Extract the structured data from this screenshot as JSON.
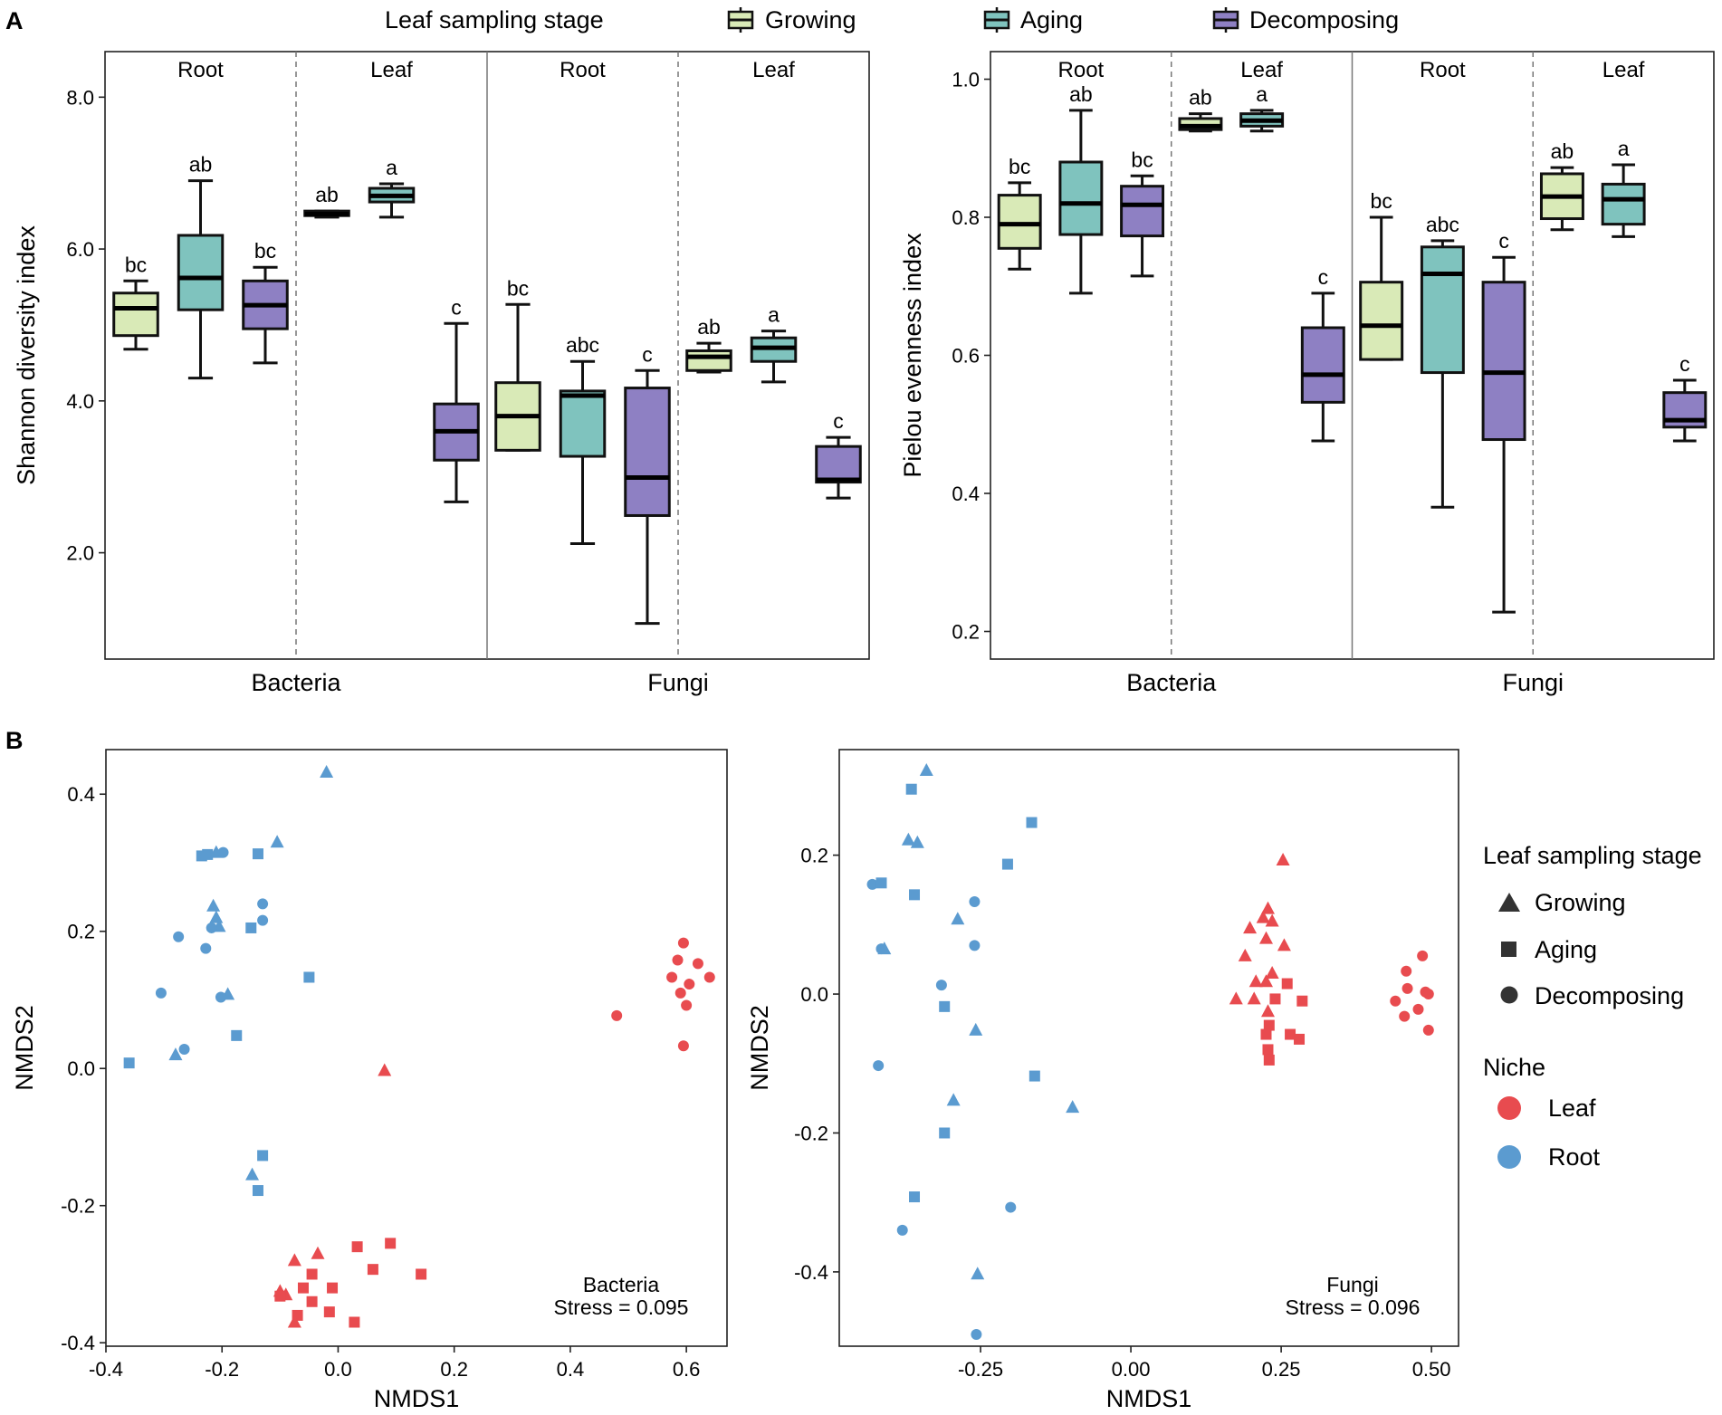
{
  "panels": {
    "a": "A",
    "b": "B"
  },
  "legend_top": {
    "title": "Leaf sampling stage",
    "items": [
      {
        "label": "Growing",
        "color": "#d9eab7"
      },
      {
        "label": "Aging",
        "color": "#7fc3be"
      },
      {
        "label": "Decomposing",
        "color": "#8e80c3"
      }
    ]
  },
  "legend_right": {
    "stage_title": "Leaf sampling stage",
    "stages": [
      {
        "label": "Growing",
        "shape": "triangle"
      },
      {
        "label": "Aging",
        "shape": "square"
      },
      {
        "label": "Decomposing",
        "shape": "circle"
      }
    ],
    "niche_title": "Niche",
    "niches": [
      {
        "label": "Leaf",
        "color": "#e84b4f"
      },
      {
        "label": "Root",
        "color": "#5b9bd0"
      }
    ]
  },
  "chart_data": [
    {
      "type": "boxplot",
      "ylabel": "Shannon diversity index",
      "ylim": [
        0.6,
        8.6
      ],
      "yticks": [
        "2.0",
        "4.0",
        "6.0",
        "8.0"
      ],
      "groups": [
        "Bacteria",
        "Fungi"
      ],
      "facets": [
        "Root",
        "Leaf",
        "Root",
        "Leaf"
      ],
      "boxes": [
        {
          "facet": 0,
          "stage": 0,
          "min": 4.68,
          "q1": 4.86,
          "median": 5.22,
          "q3": 5.42,
          "max": 5.58,
          "letter": "bc"
        },
        {
          "facet": 0,
          "stage": 1,
          "min": 4.3,
          "q1": 5.2,
          "median": 5.62,
          "q3": 6.18,
          "max": 6.9,
          "letter": "ab"
        },
        {
          "facet": 0,
          "stage": 2,
          "min": 4.5,
          "q1": 4.95,
          "median": 5.26,
          "q3": 5.58,
          "max": 5.76,
          "letter": "bc"
        },
        {
          "facet": 1,
          "stage": 0,
          "min": 6.42,
          "q1": 6.44,
          "median": 6.46,
          "q3": 6.5,
          "max": 6.5,
          "letter": "ab"
        },
        {
          "facet": 1,
          "stage": 1,
          "min": 6.42,
          "q1": 6.62,
          "median": 6.7,
          "q3": 6.8,
          "max": 6.86,
          "letter": "a"
        },
        {
          "facet": 1,
          "stage": 2,
          "min": 2.67,
          "q1": 3.22,
          "median": 3.6,
          "q3": 3.96,
          "max": 5.02,
          "letter": "c"
        },
        {
          "facet": 2,
          "stage": 0,
          "min": 3.35,
          "q1": 3.35,
          "median": 3.8,
          "q3": 4.24,
          "max": 5.27,
          "letter": "bc"
        },
        {
          "facet": 2,
          "stage": 1,
          "min": 2.12,
          "q1": 3.27,
          "median": 4.07,
          "q3": 4.13,
          "max": 4.52,
          "letter": "abc"
        },
        {
          "facet": 2,
          "stage": 2,
          "min": 1.07,
          "q1": 2.49,
          "median": 2.99,
          "q3": 4.17,
          "max": 4.4,
          "letter": "c"
        },
        {
          "facet": 3,
          "stage": 0,
          "min": 4.38,
          "q1": 4.4,
          "median": 4.58,
          "q3": 4.66,
          "max": 4.76,
          "letter": "ab"
        },
        {
          "facet": 3,
          "stage": 1,
          "min": 4.25,
          "q1": 4.52,
          "median": 4.7,
          "q3": 4.83,
          "max": 4.92,
          "letter": "a"
        },
        {
          "facet": 3,
          "stage": 2,
          "min": 2.72,
          "q1": 2.93,
          "median": 2.96,
          "q3": 3.4,
          "max": 3.52,
          "letter": "c"
        }
      ]
    },
    {
      "type": "boxplot",
      "ylabel": "Pielou evenness index",
      "ylim": [
        0.16,
        1.04
      ],
      "yticks": [
        "0.2",
        "0.4",
        "0.6",
        "0.8",
        "1.0"
      ],
      "groups": [
        "Bacteria",
        "Fungi"
      ],
      "facets": [
        "Root",
        "Leaf",
        "Root",
        "Leaf"
      ],
      "boxes": [
        {
          "facet": 0,
          "stage": 0,
          "min": 0.725,
          "q1": 0.755,
          "median": 0.79,
          "q3": 0.832,
          "max": 0.85,
          "letter": "bc"
        },
        {
          "facet": 0,
          "stage": 1,
          "min": 0.69,
          "q1": 0.775,
          "median": 0.82,
          "q3": 0.88,
          "max": 0.955,
          "letter": "ab"
        },
        {
          "facet": 0,
          "stage": 2,
          "min": 0.715,
          "q1": 0.773,
          "median": 0.818,
          "q3": 0.845,
          "max": 0.86,
          "letter": "bc"
        },
        {
          "facet": 1,
          "stage": 0,
          "min": 0.925,
          "q1": 0.927,
          "median": 0.932,
          "q3": 0.943,
          "max": 0.95,
          "letter": "ab"
        },
        {
          "facet": 1,
          "stage": 1,
          "min": 0.925,
          "q1": 0.932,
          "median": 0.94,
          "q3": 0.95,
          "max": 0.955,
          "letter": "a"
        },
        {
          "facet": 1,
          "stage": 2,
          "min": 0.476,
          "q1": 0.532,
          "median": 0.572,
          "q3": 0.64,
          "max": 0.69,
          "letter": "c"
        },
        {
          "facet": 2,
          "stage": 0,
          "min": 0.594,
          "q1": 0.594,
          "median": 0.643,
          "q3": 0.706,
          "max": 0.8,
          "letter": "bc"
        },
        {
          "facet": 2,
          "stage": 1,
          "min": 0.38,
          "q1": 0.575,
          "median": 0.718,
          "q3": 0.757,
          "max": 0.766,
          "letter": "abc"
        },
        {
          "facet": 2,
          "stage": 2,
          "min": 0.228,
          "q1": 0.478,
          "median": 0.575,
          "q3": 0.706,
          "max": 0.742,
          "letter": "c"
        },
        {
          "facet": 3,
          "stage": 0,
          "min": 0.782,
          "q1": 0.798,
          "median": 0.83,
          "q3": 0.863,
          "max": 0.872,
          "letter": "ab"
        },
        {
          "facet": 3,
          "stage": 1,
          "min": 0.772,
          "q1": 0.79,
          "median": 0.826,
          "q3": 0.848,
          "max": 0.876,
          "letter": "a"
        },
        {
          "facet": 3,
          "stage": 2,
          "min": 0.476,
          "q1": 0.496,
          "median": 0.506,
          "q3": 0.546,
          "max": 0.564,
          "letter": "c"
        }
      ]
    },
    {
      "type": "scatter",
      "xlabel": "NMDS1",
      "ylabel": "NMDS2",
      "annotation": [
        "Bacteria",
        "Stress = 0.095"
      ],
      "xlim": [
        -0.4,
        0.67
      ],
      "ylim": [
        -0.405,
        0.465
      ],
      "xticks": [
        {
          "v": -0.4,
          "l": "-0.4"
        },
        {
          "v": -0.2,
          "l": "-0.2"
        },
        {
          "v": 0.0,
          "l": "0.0"
        },
        {
          "v": 0.2,
          "l": "0.2"
        },
        {
          "v": 0.4,
          "l": "0.4"
        },
        {
          "v": 0.6,
          "l": "0.6"
        }
      ],
      "yticks": [
        {
          "v": -0.4,
          "l": "-0.4"
        },
        {
          "v": -0.2,
          "l": "-0.2"
        },
        {
          "v": 0.0,
          "l": "0.0"
        },
        {
          "v": 0.2,
          "l": "0.2"
        },
        {
          "v": 0.4,
          "l": "0.4"
        }
      ],
      "points": [
        [
          -0.02,
          0.432,
          "t",
          "root"
        ],
        [
          -0.105,
          0.33,
          "t",
          "root"
        ],
        [
          -0.225,
          0.312,
          "s",
          "root"
        ],
        [
          -0.21,
          0.315,
          "t",
          "root"
        ],
        [
          -0.198,
          0.315,
          "c",
          "root"
        ],
        [
          -0.138,
          0.313,
          "s",
          "root"
        ],
        [
          -0.235,
          0.31,
          "s",
          "root"
        ],
        [
          -0.215,
          0.237,
          "t",
          "root"
        ],
        [
          -0.13,
          0.24,
          "c",
          "root"
        ],
        [
          -0.21,
          0.22,
          "t",
          "root"
        ],
        [
          -0.13,
          0.216,
          "c",
          "root"
        ],
        [
          -0.15,
          0.205,
          "s",
          "root"
        ],
        [
          -0.205,
          0.207,
          "t",
          "root"
        ],
        [
          -0.218,
          0.205,
          "c",
          "root"
        ],
        [
          -0.275,
          0.192,
          "c",
          "root"
        ],
        [
          -0.228,
          0.175,
          "c",
          "root"
        ],
        [
          -0.05,
          0.133,
          "s",
          "root"
        ],
        [
          -0.305,
          0.11,
          "c",
          "root"
        ],
        [
          -0.19,
          0.108,
          "t",
          "root"
        ],
        [
          -0.202,
          0.104,
          "c",
          "root"
        ],
        [
          -0.175,
          0.048,
          "s",
          "root"
        ],
        [
          -0.265,
          0.028,
          "c",
          "root"
        ],
        [
          -0.28,
          0.02,
          "t",
          "root"
        ],
        [
          -0.36,
          0.008,
          "s",
          "root"
        ],
        [
          -0.13,
          -0.127,
          "s",
          "root"
        ],
        [
          -0.148,
          -0.155,
          "t",
          "root"
        ],
        [
          -0.138,
          -0.178,
          "s",
          "root"
        ],
        [
          0.595,
          0.183,
          "c",
          "leaf"
        ],
        [
          0.585,
          0.158,
          "c",
          "leaf"
        ],
        [
          0.62,
          0.153,
          "c",
          "leaf"
        ],
        [
          0.64,
          0.133,
          "c",
          "leaf"
        ],
        [
          0.575,
          0.133,
          "c",
          "leaf"
        ],
        [
          0.605,
          0.123,
          "c",
          "leaf"
        ],
        [
          0.59,
          0.11,
          "c",
          "leaf"
        ],
        [
          0.6,
          0.092,
          "c",
          "leaf"
        ],
        [
          0.48,
          0.077,
          "c",
          "leaf"
        ],
        [
          0.595,
          0.033,
          "c",
          "leaf"
        ],
        [
          0.08,
          -0.003,
          "t",
          "leaf"
        ],
        [
          0.09,
          -0.255,
          "s",
          "leaf"
        ],
        [
          0.033,
          -0.26,
          "s",
          "leaf"
        ],
        [
          -0.035,
          -0.27,
          "t",
          "leaf"
        ],
        [
          -0.075,
          -0.28,
          "t",
          "leaf"
        ],
        [
          -0.045,
          -0.3,
          "s",
          "leaf"
        ],
        [
          0.06,
          -0.293,
          "s",
          "leaf"
        ],
        [
          0.143,
          -0.3,
          "s",
          "leaf"
        ],
        [
          -0.06,
          -0.32,
          "s",
          "leaf"
        ],
        [
          -0.01,
          -0.32,
          "s",
          "leaf"
        ],
        [
          -0.1,
          -0.325,
          "t",
          "leaf"
        ],
        [
          -0.09,
          -0.33,
          "t",
          "leaf"
        ],
        [
          -0.1,
          -0.332,
          "s",
          "leaf"
        ],
        [
          -0.045,
          -0.34,
          "s",
          "leaf"
        ],
        [
          -0.015,
          -0.355,
          "s",
          "leaf"
        ],
        [
          -0.07,
          -0.36,
          "s",
          "leaf"
        ],
        [
          0.028,
          -0.37,
          "s",
          "leaf"
        ],
        [
          -0.075,
          -0.37,
          "t",
          "leaf"
        ]
      ]
    },
    {
      "type": "scatter",
      "xlabel": "NMDS1",
      "ylabel": "NMDS2",
      "annotation": [
        "Fungi",
        "Stress = 0.096"
      ],
      "xlim": [
        -0.485,
        0.545
      ],
      "ylim": [
        -0.507,
        0.352
      ],
      "xticks": [
        {
          "v": -0.25,
          "l": "-0.25"
        },
        {
          "v": 0.0,
          "l": "0.00"
        },
        {
          "v": 0.25,
          "l": "0.25"
        },
        {
          "v": 0.5,
          "l": "0.50"
        }
      ],
      "yticks": [
        {
          "v": -0.4,
          "l": "-0.4"
        },
        {
          "v": -0.2,
          "l": "-0.2"
        },
        {
          "v": 0.0,
          "l": "0.0"
        },
        {
          "v": 0.2,
          "l": "0.2"
        }
      ],
      "points": [
        [
          -0.34,
          0.322,
          "t",
          "root"
        ],
        [
          -0.365,
          0.295,
          "s",
          "root"
        ],
        [
          -0.37,
          0.222,
          "t",
          "root"
        ],
        [
          -0.355,
          0.218,
          "t",
          "root"
        ],
        [
          -0.165,
          0.247,
          "s",
          "root"
        ],
        [
          -0.205,
          0.187,
          "s",
          "root"
        ],
        [
          -0.43,
          0.158,
          "c",
          "root"
        ],
        [
          -0.415,
          0.16,
          "s",
          "root"
        ],
        [
          -0.36,
          0.143,
          "s",
          "root"
        ],
        [
          -0.26,
          0.133,
          "c",
          "root"
        ],
        [
          -0.288,
          0.108,
          "t",
          "root"
        ],
        [
          -0.26,
          0.07,
          "c",
          "root"
        ],
        [
          -0.415,
          0.065,
          "c",
          "root"
        ],
        [
          -0.41,
          0.065,
          "t",
          "root"
        ],
        [
          -0.315,
          0.013,
          "c",
          "root"
        ],
        [
          -0.31,
          -0.018,
          "s",
          "root"
        ],
        [
          -0.258,
          -0.052,
          "t",
          "root"
        ],
        [
          -0.42,
          -0.103,
          "c",
          "root"
        ],
        [
          -0.16,
          -0.118,
          "s",
          "root"
        ],
        [
          -0.295,
          -0.153,
          "t",
          "root"
        ],
        [
          -0.097,
          -0.163,
          "t",
          "root"
        ],
        [
          -0.31,
          -0.2,
          "s",
          "root"
        ],
        [
          -0.36,
          -0.292,
          "s",
          "root"
        ],
        [
          -0.2,
          -0.307,
          "c",
          "root"
        ],
        [
          -0.38,
          -0.34,
          "c",
          "root"
        ],
        [
          -0.255,
          -0.403,
          "t",
          "root"
        ],
        [
          -0.257,
          -0.49,
          "c",
          "root"
        ],
        [
          0.253,
          0.193,
          "t",
          "leaf"
        ],
        [
          0.228,
          0.123,
          "t",
          "leaf"
        ],
        [
          0.22,
          0.11,
          "t",
          "leaf"
        ],
        [
          0.235,
          0.105,
          "t",
          "leaf"
        ],
        [
          0.198,
          0.095,
          "t",
          "leaf"
        ],
        [
          0.225,
          0.08,
          "t",
          "leaf"
        ],
        [
          0.255,
          0.07,
          "t",
          "leaf"
        ],
        [
          0.19,
          0.055,
          "t",
          "leaf"
        ],
        [
          0.235,
          0.03,
          "t",
          "leaf"
        ],
        [
          0.208,
          0.018,
          "t",
          "leaf"
        ],
        [
          0.225,
          0.018,
          "t",
          "leaf"
        ],
        [
          0.26,
          0.015,
          "s",
          "leaf"
        ],
        [
          0.175,
          -0.007,
          "t",
          "leaf"
        ],
        [
          0.205,
          -0.007,
          "t",
          "leaf"
        ],
        [
          0.24,
          -0.007,
          "s",
          "leaf"
        ],
        [
          0.285,
          -0.01,
          "s",
          "leaf"
        ],
        [
          0.228,
          -0.025,
          "t",
          "leaf"
        ],
        [
          0.23,
          -0.045,
          "s",
          "leaf"
        ],
        [
          0.225,
          -0.058,
          "s",
          "leaf"
        ],
        [
          0.265,
          -0.058,
          "s",
          "leaf"
        ],
        [
          0.28,
          -0.065,
          "s",
          "leaf"
        ],
        [
          0.228,
          -0.08,
          "s",
          "leaf"
        ],
        [
          0.23,
          -0.095,
          "s",
          "leaf"
        ],
        [
          0.485,
          0.055,
          "c",
          "leaf"
        ],
        [
          0.458,
          0.033,
          "c",
          "leaf"
        ],
        [
          0.46,
          0.008,
          "c",
          "leaf"
        ],
        [
          0.49,
          0.003,
          "c",
          "leaf"
        ],
        [
          0.495,
          0.0,
          "c",
          "leaf"
        ],
        [
          0.44,
          -0.01,
          "c",
          "leaf"
        ],
        [
          0.478,
          -0.022,
          "c",
          "leaf"
        ],
        [
          0.455,
          -0.032,
          "c",
          "leaf"
        ],
        [
          0.495,
          -0.052,
          "c",
          "leaf"
        ]
      ]
    }
  ]
}
